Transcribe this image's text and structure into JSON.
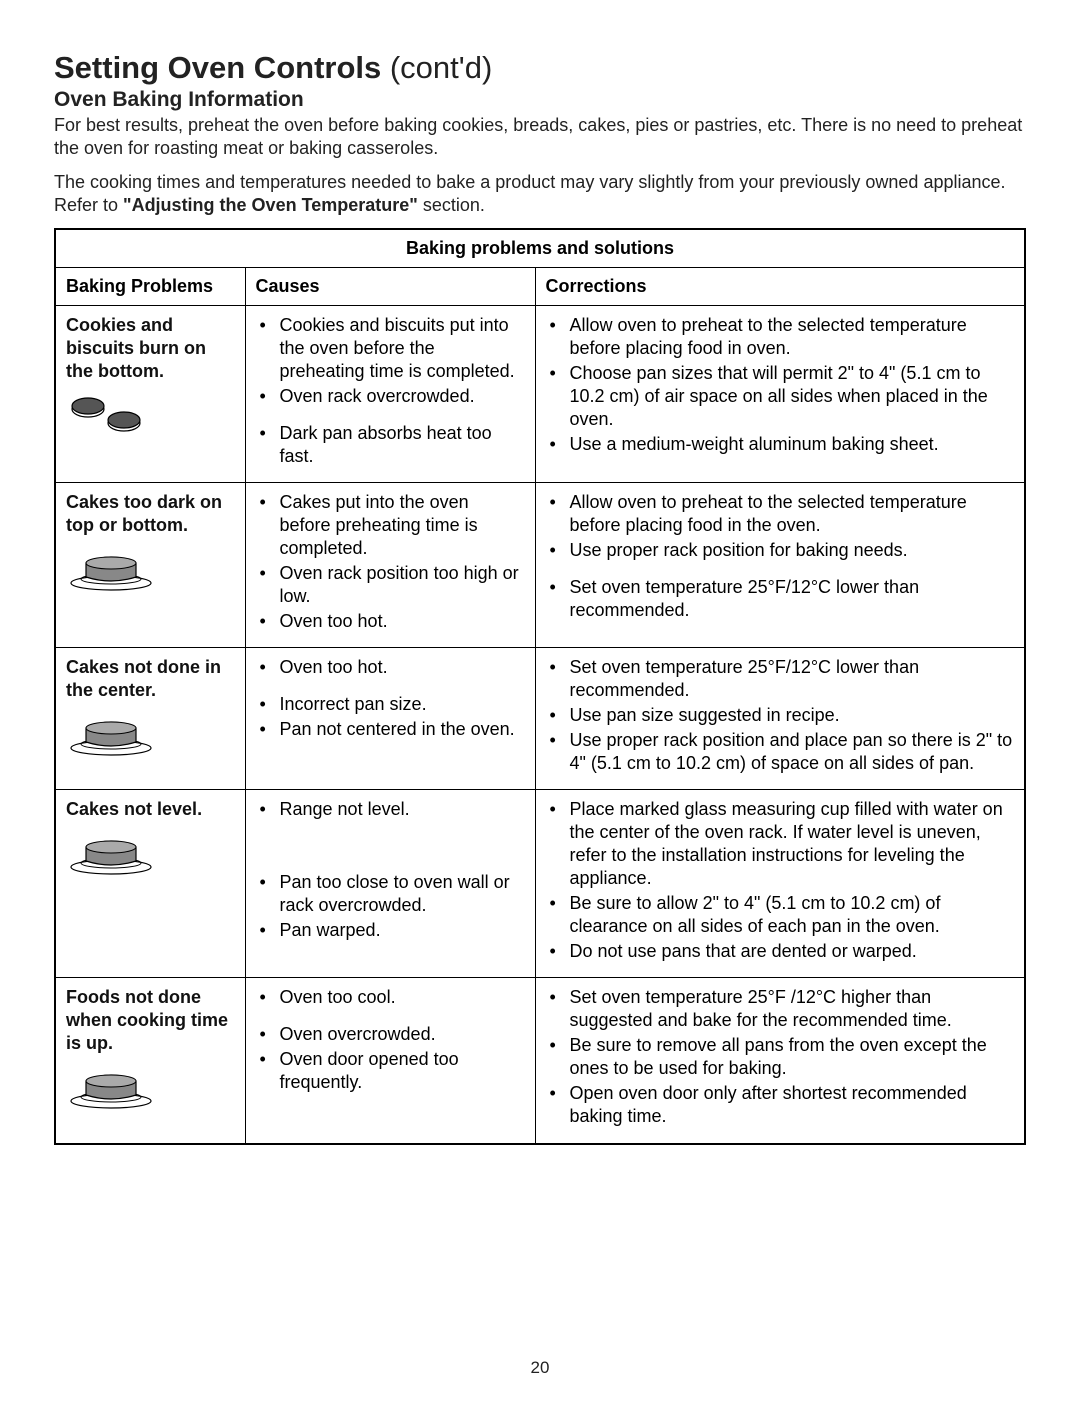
{
  "heading": {
    "main": "Setting Oven Controls",
    "suffix": " (cont'd)"
  },
  "subheading": "Oven Baking Information",
  "intro1": "For best results, preheat the oven before baking cookies, breads, cakes, pies or pastries, etc. There is no need to preheat the oven for roasting meat or baking casseroles.",
  "intro2_pre": "The cooking times and temperatures needed to bake a product may vary slightly from your previously owned appliance. Refer to ",
  "intro2_bold": "\"Adjusting the Oven Temperature\"",
  "intro2_post": " section.",
  "table": {
    "caption": "Baking problems and solutions",
    "headers": {
      "c1": "Baking Problems",
      "c2": "Causes",
      "c3": "Corrections"
    },
    "rows": [
      {
        "problem": "Cookies and biscuits burn on the bottom.",
        "icon": "cookies",
        "causes": [
          "Cookies and biscuits put into the oven before the preheating time is completed.",
          "Oven rack overcrowded.",
          "Dark pan absorbs heat too fast."
        ],
        "cause_gaps": [
          0,
          0,
          1
        ],
        "corrections": [
          "Allow oven to preheat to the selected temperature before placing food in oven.",
          "Choose pan sizes that will permit 2\" to 4\" (5.1 cm to 10.2 cm) of air space on all sides when placed in the oven.",
          "Use a medium-weight aluminum baking sheet."
        ]
      },
      {
        "problem": "Cakes too dark on top or bottom.",
        "icon": "cake",
        "causes": [
          "Cakes put into the oven before preheating time is completed.",
          "Oven rack position too high or low.",
          "Oven too hot."
        ],
        "corrections": [
          "Allow oven to preheat to the selected temperature before placing food in the oven.",
          "Use proper rack position for baking needs.",
          "Set oven temperature 25°F/12°C lower than recommended."
        ],
        "corr_gaps": [
          0,
          0,
          1
        ]
      },
      {
        "problem": "Cakes not done in the center.",
        "icon": "cake",
        "causes": [
          "Oven too hot.",
          "Incorrect pan size.",
          "Pan not centered in the oven."
        ],
        "cause_gaps": [
          0,
          1,
          0
        ],
        "corrections": [
          "Set oven temperature 25°F/12°C lower than recommended.",
          "Use pan size suggested in recipe.",
          "Use proper rack position and place pan so there is 2\" to 4\" (5.1 cm to 10.2 cm) of space on all sides of pan."
        ]
      },
      {
        "problem": "Cakes not level.",
        "icon": "cake",
        "causes": [
          "Range not level.",
          "Pan too close to oven wall or rack overcrowded.",
          "Pan warped."
        ],
        "cause_gaps": [
          0,
          2,
          0
        ],
        "corrections": [
          "Place marked glass measuring cup filled with water on the center of the oven rack. If water level is uneven, refer to the installation instructions for leveling the appliance.",
          "Be sure to allow 2\" to 4\" (5.1 cm to 10.2 cm) of clearance on all sides of each pan in the oven.",
          "Do not use pans that are dented or warped."
        ]
      },
      {
        "problem": "Foods not done when cooking time is up.",
        "icon": "cake",
        "causes": [
          "Oven too cool.",
          "Oven overcrowded.",
          "Oven door opened too frequently."
        ],
        "cause_gaps": [
          0,
          1,
          0
        ],
        "corrections": [
          "Set oven temperature 25°F /12°C higher than suggested and bake for the recommended time.",
          "Be sure to remove all pans from the oven except the ones to be used for baking.",
          "Open oven door only after shortest recommended baking time."
        ]
      }
    ]
  },
  "pagenum": "20"
}
